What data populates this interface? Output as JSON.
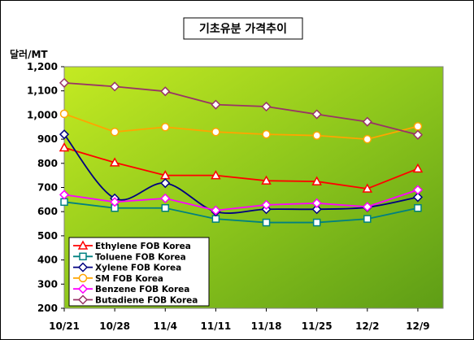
{
  "chart_data": {
    "type": "line",
    "title": "기초유분 가격추이",
    "ylabel": "달러/MT",
    "ylim": [
      200,
      1200
    ],
    "yticks": [
      "200",
      "300",
      "400",
      "500",
      "600",
      "700",
      "800",
      "900",
      "1,000",
      "1,100",
      "1,200"
    ],
    "categories": [
      "10/21",
      "10/28",
      "11/4",
      "11/11",
      "11/18",
      "11/25",
      "12/2",
      "12/9"
    ],
    "grid": false,
    "legend_position": "bottom-left",
    "plot_background": "#8fc81e",
    "series": [
      {
        "name": "Ethylene FOB Korea",
        "color": "#ff0000",
        "marker": "triangle",
        "values": [
          865,
          803,
          750,
          750,
          728,
          725,
          695,
          778
        ]
      },
      {
        "name": "Toluene FOB Korea",
        "color": "#008080",
        "marker": "square",
        "values": [
          640,
          615,
          615,
          570,
          555,
          555,
          570,
          615
        ]
      },
      {
        "name": "Xylene FOB Korea",
        "color": "#000080",
        "marker": "diamond",
        "values": [
          920,
          655,
          718,
          600,
          610,
          610,
          618,
          660
        ]
      },
      {
        "name": "SM FOB Korea",
        "color": "#ffa500",
        "marker": "circle",
        "values": [
          1005,
          930,
          950,
          930,
          920,
          915,
          900,
          953
        ]
      },
      {
        "name": "Benzene FOB Korea",
        "color": "#ff00ff",
        "marker": "diamond",
        "values": [
          670,
          640,
          655,
          605,
          628,
          635,
          620,
          690
        ]
      },
      {
        "name": "Butadiene FOB Korea",
        "color": "#993366",
        "marker": "diamond",
        "values": [
          1133,
          1118,
          1098,
          1043,
          1035,
          1003,
          972,
          918
        ]
      }
    ]
  }
}
